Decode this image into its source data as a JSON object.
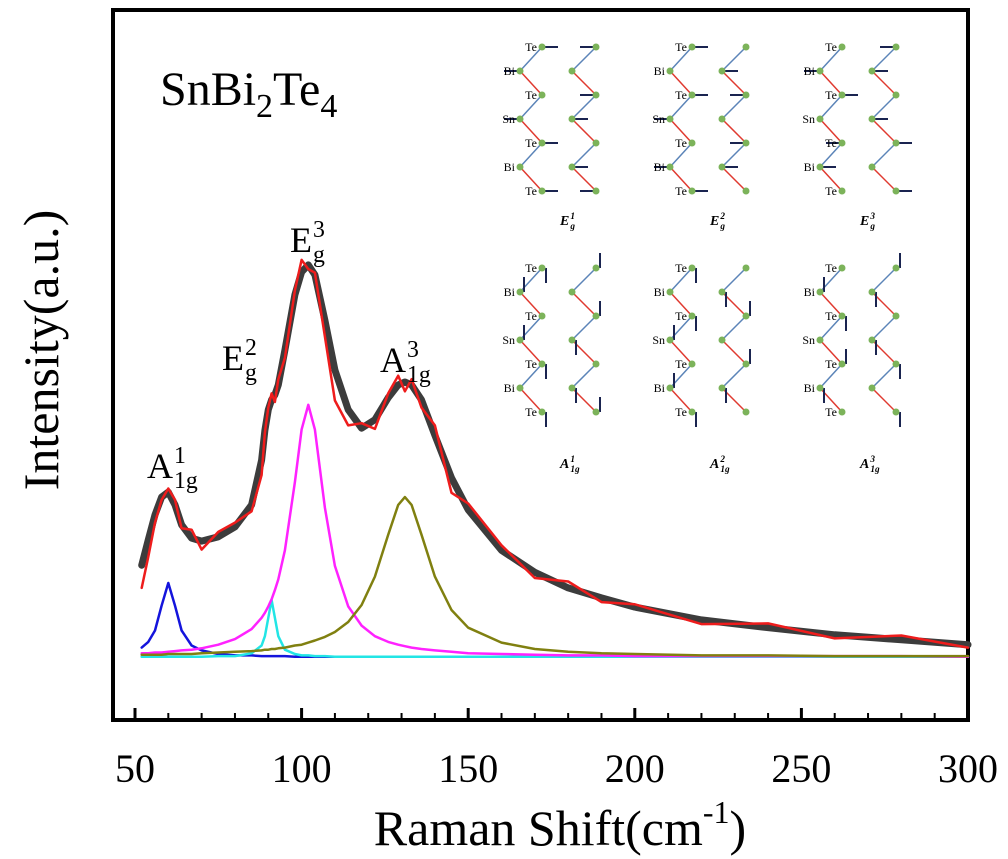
{
  "chart_data": {
    "type": "line",
    "title_parts": [
      "SnBi",
      "2",
      "Te",
      "4"
    ],
    "x_label": {
      "text": "Raman Shift(cm",
      "sup": "-1",
      "after": ")"
    },
    "y_label": "Intensity(a.u.)",
    "x": [
      52,
      54,
      56,
      58,
      60,
      62,
      64,
      67,
      70,
      75,
      80,
      85,
      88,
      89,
      90,
      91,
      92,
      93,
      95,
      98,
      100,
      102,
      104,
      107,
      110,
      114,
      118,
      122,
      126,
      129,
      131,
      133,
      136,
      140,
      145,
      150,
      160,
      170,
      180,
      190,
      200,
      220,
      240,
      260,
      280,
      300
    ],
    "series": [
      {
        "color": "#3c3c3c",
        "values": [
          21.8,
          25.4,
          28.9,
          31.4,
          32.1,
          30.3,
          27.5,
          25.6,
          25.2,
          25.8,
          27.2,
          30.3,
          36.6,
          40.8,
          43.7,
          45.1,
          45.8,
          47.2,
          52.1,
          59.9,
          63.1,
          64.1,
          62.7,
          56.3,
          49.3,
          43.7,
          41.1,
          42.3,
          45.4,
          47.2,
          47.6,
          47.2,
          45.1,
          40.1,
          34.1,
          29.6,
          23.9,
          20.8,
          18.6,
          17.2,
          15.9,
          14.1,
          13.0,
          12.0,
          11.3,
          10.6
        ]
      },
      {
        "color": "#ee1c1c",
        "values": [
          18.6,
          23.0,
          27.8,
          31.0,
          32.6,
          31.0,
          27.0,
          26.8,
          24.0,
          26.5,
          27.8,
          29.4,
          34.5,
          40.5,
          44.0,
          46.0,
          44.8,
          48.0,
          51.0,
          60.5,
          64.8,
          63.5,
          63.0,
          54.0,
          45.0,
          41.5,
          41.8,
          41.0,
          46.0,
          48.5,
          46.3,
          48.0,
          44.0,
          41.5,
          32.0,
          30.5,
          24.6,
          20.0,
          19.5,
          16.6,
          16.3,
          13.5,
          13.6,
          11.5,
          11.9,
          10.2
        ]
      },
      {
        "color": "#1414dc",
        "values": [
          10.2,
          11.0,
          12.6,
          16.1,
          19.3,
          16.1,
          12.6,
          10.5,
          9.8,
          9.3,
          9.1,
          9.1,
          9.0,
          9.0,
          9.0,
          9.0,
          9.0,
          9.0,
          9.0,
          8.9,
          8.9,
          8.9,
          8.9,
          8.9,
          8.9,
          8.9,
          8.9,
          8.9,
          8.9,
          8.9,
          8.9,
          8.9,
          8.9,
          8.9,
          8.9,
          8.9,
          8.9,
          8.9,
          8.9,
          8.9,
          8.9,
          8.9,
          8.9,
          8.9,
          8.9,
          8.9
        ]
      },
      {
        "color": "#22e5e5",
        "values": [
          8.9,
          8.9,
          8.9,
          8.9,
          8.9,
          8.9,
          8.9,
          8.9,
          8.9,
          9.0,
          9.0,
          9.4,
          10.5,
          11.8,
          14.4,
          16.9,
          14.4,
          11.8,
          9.9,
          9.3,
          9.1,
          9.1,
          9.0,
          9.0,
          8.9,
          8.9,
          8.9,
          8.9,
          8.9,
          8.9,
          8.9,
          8.9,
          8.9,
          8.9,
          8.9,
          8.9,
          8.9,
          8.9,
          8.9,
          8.9,
          8.9,
          8.9,
          8.9,
          8.9,
          8.9,
          8.9
        ]
      },
      {
        "color": "#ff22ff",
        "values": [
          9.4,
          9.4,
          9.5,
          9.5,
          9.6,
          9.7,
          9.8,
          9.9,
          10.1,
          10.6,
          11.4,
          12.8,
          14.4,
          15.1,
          16.0,
          17.0,
          18.3,
          19.8,
          23.9,
          33.5,
          40.9,
          44.4,
          40.9,
          29.9,
          21.7,
          16.0,
          13.3,
          11.8,
          11.0,
          10.6,
          10.4,
          10.2,
          10.0,
          9.8,
          9.6,
          9.4,
          9.3,
          9.2,
          9.1,
          9.1,
          9.0,
          9.0,
          9.0,
          9.0,
          9.0,
          8.9
        ]
      },
      {
        "color": "#808010",
        "values": [
          9.2,
          9.2,
          9.2,
          9.2,
          9.3,
          9.3,
          9.3,
          9.3,
          9.4,
          9.5,
          9.6,
          9.7,
          9.8,
          9.9,
          9.9,
          10.0,
          10.0,
          10.1,
          10.2,
          10.5,
          10.6,
          10.9,
          11.2,
          11.7,
          12.4,
          13.8,
          16.2,
          20.2,
          26.1,
          30.3,
          31.4,
          30.3,
          26.1,
          20.2,
          15.5,
          13.0,
          10.9,
          10.0,
          9.6,
          9.4,
          9.3,
          9.1,
          9.1,
          9.0,
          9.0,
          9.0
        ]
      }
    ],
    "xlim": [
      43.4,
      300
    ],
    "ylim": [
      0,
      100
    ],
    "xticks": [
      50,
      100,
      150,
      200,
      250,
      300
    ],
    "xminor_ticks": [
      60,
      70,
      80,
      90,
      110,
      120,
      130,
      140,
      160,
      170,
      180,
      190,
      210,
      220,
      230,
      240,
      260,
      270,
      280,
      290
    ],
    "annotations": [
      {
        "base": "A",
        "sub": "1g",
        "sup": "1"
      },
      {
        "base": "E",
        "sub": "g",
        "sup": "2"
      },
      {
        "base": "E",
        "sub": "g",
        "sup": "3"
      },
      {
        "base": "A",
        "sub": "1g",
        "sup": "3"
      }
    ],
    "inset": {
      "panels": [
        {
          "label": {
            "base": "E",
            "sub": "g",
            "sup": "1"
          },
          "atoms": [
            "Te",
            "Bi",
            "Te",
            "Sn",
            "Te",
            "Bi",
            "Te"
          ]
        },
        {
          "label": {
            "base": "E",
            "sub": "g",
            "sup": "2"
          },
          "atoms": [
            "Te",
            "Bi",
            "Te",
            "Sn",
            "Te",
            "Bi",
            "Te"
          ]
        },
        {
          "label": {
            "base": "E",
            "sub": "g",
            "sup": "3"
          },
          "atoms": [
            "Te",
            "Bi",
            "Te",
            "Sn",
            "Te",
            "Bi",
            "Te"
          ]
        },
        {
          "label": {
            "base": "A",
            "sub": "1g",
            "sup": "1"
          },
          "atoms": [
            "Te",
            "Bi",
            "Te",
            "Sn",
            "Te",
            "Bi",
            "Te"
          ]
        },
        {
          "label": {
            "base": "A",
            "sub": "1g",
            "sup": "2"
          },
          "atoms": [
            "Te",
            "Bi",
            "Te",
            "Sn",
            "Te",
            "Bi",
            "Te"
          ]
        },
        {
          "label": {
            "base": "A",
            "sub": "1g",
            "sup": "3"
          },
          "atoms": [
            "Te",
            "Bi",
            "Te",
            "Sn",
            "Te",
            "Bi",
            "Te"
          ]
        }
      ]
    }
  }
}
